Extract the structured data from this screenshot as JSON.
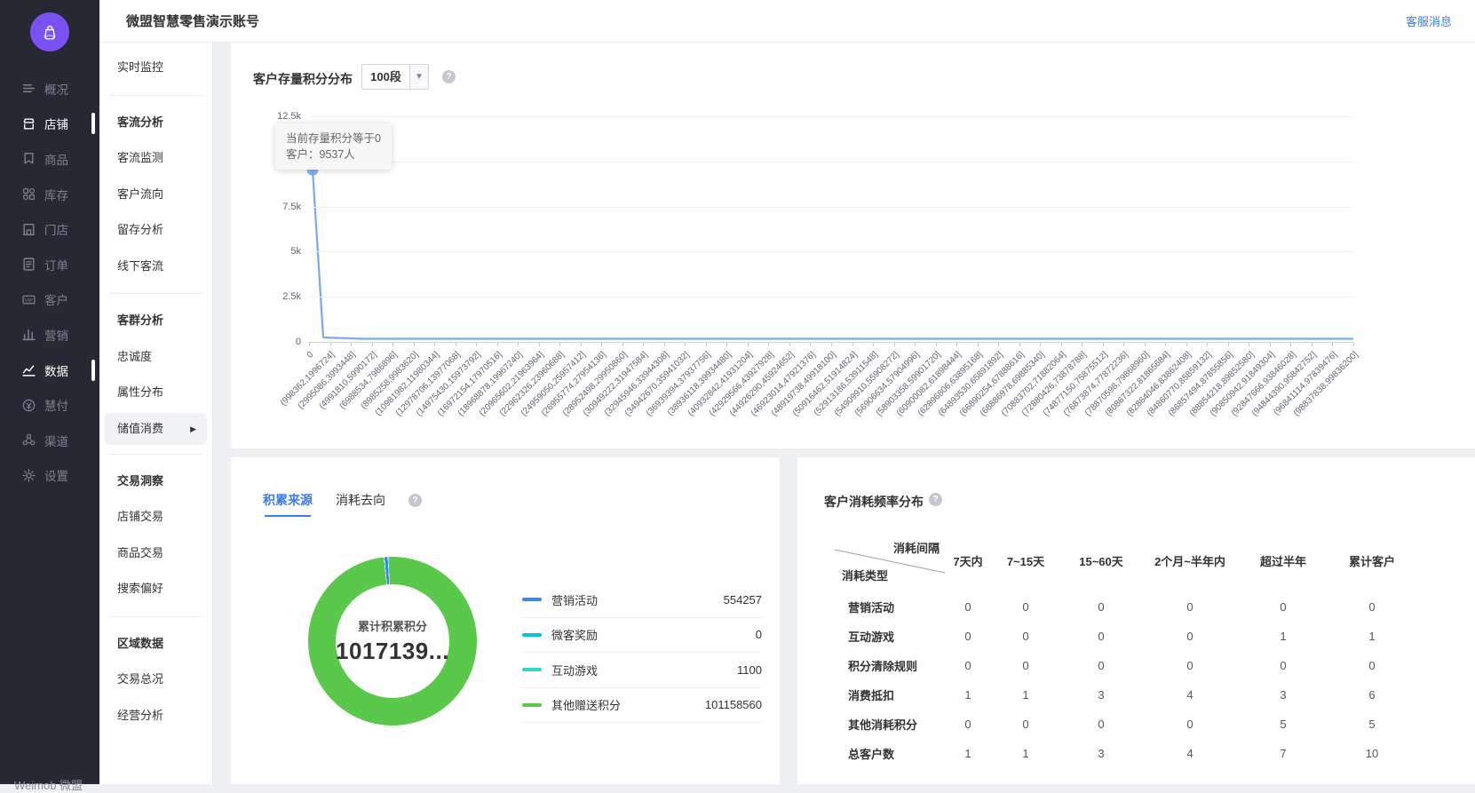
{
  "header": {
    "title": "微盟智慧零售演示账号",
    "service_link": "客服消息"
  },
  "primary_sidebar": {
    "brand": "Weimob 微盟",
    "items": [
      {
        "label": "概况",
        "icon": "overview",
        "active": false
      },
      {
        "label": "店铺",
        "icon": "shop",
        "active": true
      },
      {
        "label": "商品",
        "icon": "goods",
        "active": false
      },
      {
        "label": "库存",
        "icon": "inventory",
        "active": false
      },
      {
        "label": "门店",
        "icon": "store",
        "active": false
      },
      {
        "label": "订单",
        "icon": "orders",
        "active": false
      },
      {
        "label": "客户",
        "icon": "customers",
        "active": false
      },
      {
        "label": "营销",
        "icon": "marketing",
        "active": false
      },
      {
        "label": "数据",
        "icon": "data",
        "active": true
      },
      {
        "label": "慧付",
        "icon": "payment",
        "active": false
      },
      {
        "label": "渠道",
        "icon": "channels",
        "active": false
      },
      {
        "label": "设置",
        "icon": "settings",
        "active": false
      }
    ]
  },
  "secondary_sidebar": {
    "items": [
      {
        "type": "item",
        "label": "实时监控"
      },
      {
        "type": "divider"
      },
      {
        "type": "section",
        "label": "客流分析"
      },
      {
        "type": "item",
        "label": "客流监测"
      },
      {
        "type": "item",
        "label": "客户流向"
      },
      {
        "type": "item",
        "label": "留存分析"
      },
      {
        "type": "item",
        "label": "线下客流"
      },
      {
        "type": "divider"
      },
      {
        "type": "section",
        "label": "客群分析"
      },
      {
        "type": "item",
        "label": "忠诚度"
      },
      {
        "type": "item",
        "label": "属性分布"
      },
      {
        "type": "item",
        "label": "储值消费",
        "selected": true,
        "arrow": "▶"
      },
      {
        "type": "divider"
      },
      {
        "type": "section",
        "label": "交易洞察"
      },
      {
        "type": "item",
        "label": "店铺交易"
      },
      {
        "type": "item",
        "label": "商品交易"
      },
      {
        "type": "item",
        "label": "搜索偏好"
      },
      {
        "type": "divider"
      },
      {
        "type": "section",
        "label": "区域数据"
      },
      {
        "type": "item",
        "label": "交易总况"
      },
      {
        "type": "item",
        "label": "经营分析"
      }
    ]
  },
  "points_chart": {
    "title": "客户存量积分分布",
    "segment_select_value": "100段",
    "tooltip": {
      "line1": "当前存量积分等于0",
      "line2": "客户：9537人"
    },
    "chart_data": {
      "type": "line",
      "title": "客户存量积分分布",
      "ylim": [
        0,
        12500
      ],
      "y_ticks": [
        "0",
        "2.5k",
        "5k",
        "7.5k",
        "10k",
        "12.5k"
      ],
      "line_color": "#7aa9ee",
      "series": [
        {
          "name": "客户数",
          "first_point": {
            "x": "0",
            "value": 9537
          },
          "remaining_points_value_approx": 0,
          "point_count": 100
        }
      ],
      "x_tick_labels": [
        "0",
        "(998362,1996724]",
        "(2995086,3993448]",
        "(4991810,5990172]",
        "(6988534,7986896]",
        "(8985258,9983620]",
        "(10981982,11980344]",
        "(12978706,13977068]",
        "(14975430,15973792]",
        "(16972154,17970516]",
        "(18968878,19967240]",
        "(20965602,21963964]",
        "(22962326,23960688]",
        "(24959050,25957412]",
        "(26955774,27954136]",
        "(28952498,29950860]",
        "(30949222,31947584]",
        "(32945946,33944308]",
        "(34942670,35941032]",
        "(36939394,37937756]",
        "(38936118,39934480]",
        "(40932842,41931204]",
        "(42929566,43927928]",
        "(44926290,45924652]",
        "(46923014,47921376]",
        "(48919738,49918100]",
        "(50916462,51914824]",
        "(52913186,53911548]",
        "(54909910,55908272]",
        "(56906634,57904996]",
        "(58903358,59901720]",
        "(60900082,61898444]",
        "(62896806,63895168]",
        "(64893530,65891892]",
        "(66890254,67888616]",
        "(68886978,69885340]",
        "(70883702,71882064]",
        "(72880426,73878788]",
        "(74877150,75875512]",
        "(76873874,77872236]",
        "(78870598,79868960]",
        "(80867322,81865684]",
        "(82864046,83862408]",
        "(84860770,85859132]",
        "(86857494,87855856]",
        "(88854218,89852580]",
        "(90850942,91849304]",
        "(92847666,93846028]",
        "(94844390,95842752]",
        "(96841114,97839476]",
        "(98837838,99836200]"
      ]
    }
  },
  "accumulate_panel": {
    "tabs": [
      {
        "label": "积累来源",
        "active": true
      },
      {
        "label": "消耗去向",
        "active": false
      }
    ],
    "donut": {
      "center_label": "累计积累积分",
      "center_value": "1017139...",
      "chart_data": {
        "type": "pie",
        "items": [
          {
            "name": "营销活动",
            "value": 554257,
            "color": "#3685fc"
          },
          {
            "name": "微客奖励",
            "value": 0,
            "color": "#00c3e6"
          },
          {
            "name": "互动游戏",
            "value": 1100,
            "color": "#30d8c3"
          },
          {
            "name": "其他赠送积分",
            "value": 101158560,
            "color": "#5ac84b"
          }
        ]
      }
    }
  },
  "consume_table": {
    "title": "客户消耗频率分布",
    "corner": {
      "top": "消耗间隔",
      "bottom": "消耗类型"
    },
    "columns": [
      "7天内",
      "7~15天",
      "15~60天",
      "2个月~半年内",
      "超过半年",
      "累计客户"
    ],
    "rows": [
      {
        "label": "营销活动",
        "values": [
          0,
          0,
          0,
          0,
          0,
          0
        ]
      },
      {
        "label": "互动游戏",
        "values": [
          0,
          0,
          0,
          0,
          1,
          1
        ]
      },
      {
        "label": "积分清除规则",
        "values": [
          0,
          0,
          0,
          0,
          0,
          0
        ]
      },
      {
        "label": "消费抵扣",
        "values": [
          1,
          1,
          3,
          4,
          3,
          6
        ]
      },
      {
        "label": "其他消耗积分",
        "values": [
          0,
          0,
          0,
          0,
          5,
          5
        ]
      },
      {
        "label": "总客户数",
        "values": [
          1,
          1,
          3,
          4,
          7,
          10
        ]
      }
    ]
  }
}
